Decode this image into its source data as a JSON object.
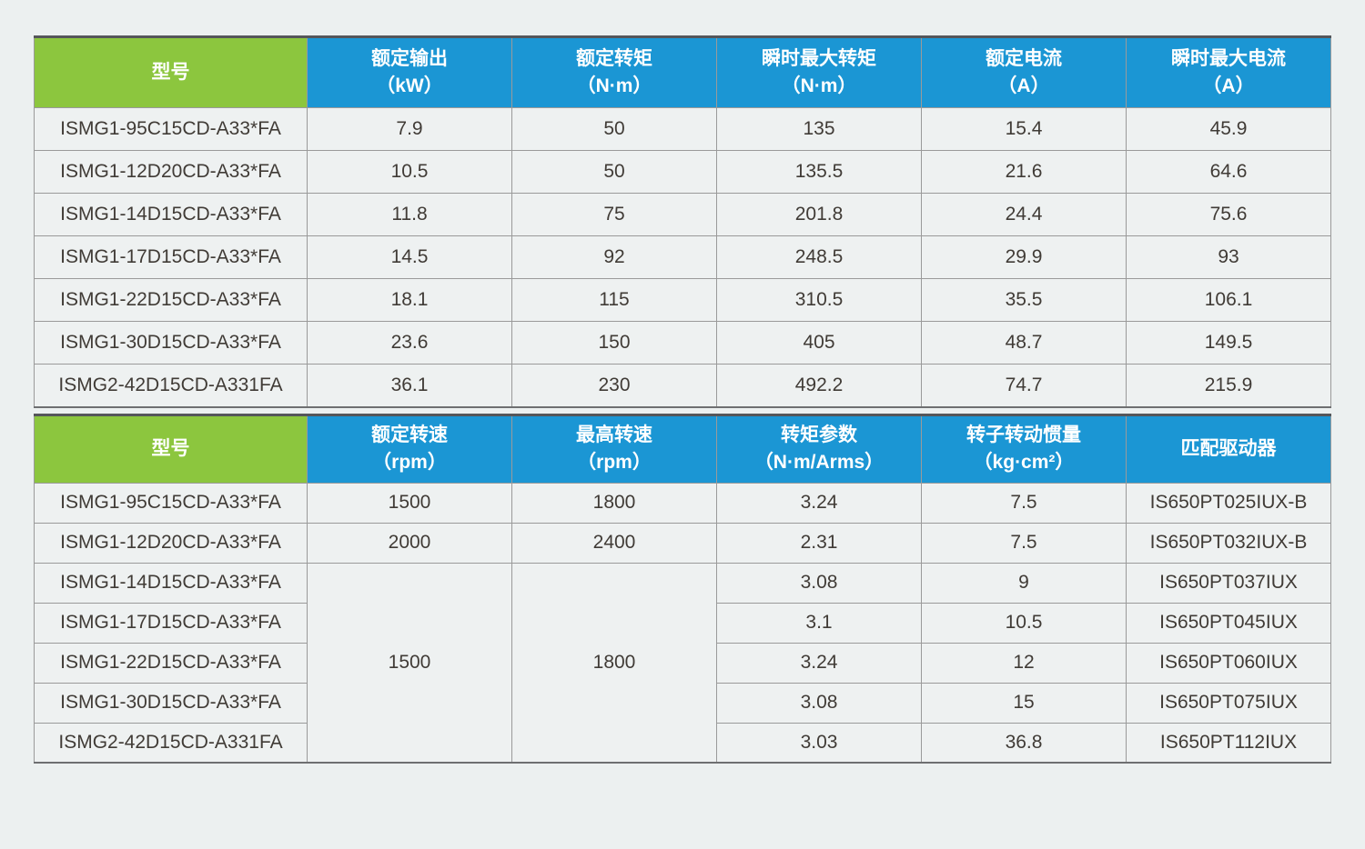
{
  "colors": {
    "page_bg": "#ECF0F0",
    "cell_bg": "#EEF1F1",
    "model_header_green": "#8CC63E",
    "data_header_blue": "#1B96D4",
    "header_text": "#FFFFFF",
    "body_text": "#403B36",
    "grid_line": "#9A9A9A",
    "table_top_border": "#55565A"
  },
  "table1": {
    "headers": [
      {
        "title": "型号",
        "unit": ""
      },
      {
        "title": "额定输出",
        "unit": "（kW）"
      },
      {
        "title": "额定转矩",
        "unit": "（N·m）"
      },
      {
        "title": "瞬时最大转矩",
        "unit": "（N·m）"
      },
      {
        "title": "额定电流",
        "unit": "（A）"
      },
      {
        "title": "瞬时最大电流",
        "unit": "（A）"
      }
    ],
    "rows": [
      {
        "model": "ISMG1-95C15CD-A33*FA",
        "output": "7.9",
        "torque": "50",
        "peak_torque": "135",
        "current": "15.4",
        "peak_current": "45.9"
      },
      {
        "model": "ISMG1-12D20CD-A33*FA",
        "output": "10.5",
        "torque": "50",
        "peak_torque": "135.5",
        "current": "21.6",
        "peak_current": "64.6"
      },
      {
        "model": "ISMG1-14D15CD-A33*FA",
        "output": "11.8",
        "torque": "75",
        "peak_torque": "201.8",
        "current": "24.4",
        "peak_current": "75.6"
      },
      {
        "model": "ISMG1-17D15CD-A33*FA",
        "output": "14.5",
        "torque": "92",
        "peak_torque": "248.5",
        "current": "29.9",
        "peak_current": "93"
      },
      {
        "model": "ISMG1-22D15CD-A33*FA",
        "output": "18.1",
        "torque": "115",
        "peak_torque": "310.5",
        "current": "35.5",
        "peak_current": "106.1"
      },
      {
        "model": "ISMG1-30D15CD-A33*FA",
        "output": "23.6",
        "torque": "150",
        "peak_torque": "405",
        "current": "48.7",
        "peak_current": "149.5"
      },
      {
        "model": "ISMG2-42D15CD-A331FA",
        "output": "36.1",
        "torque": "230",
        "peak_torque": "492.2",
        "current": "74.7",
        "peak_current": "215.9"
      }
    ]
  },
  "table2": {
    "headers": [
      {
        "title": "型号",
        "unit": ""
      },
      {
        "title": "额定转速",
        "unit": "（rpm）"
      },
      {
        "title": "最高转速",
        "unit": "（rpm）"
      },
      {
        "title": "转矩参数",
        "unit": "（N·m/Arms）"
      },
      {
        "title": "转子转动惯量",
        "unit": "（kg·cm²）"
      },
      {
        "title": "匹配驱动器",
        "unit": ""
      }
    ],
    "rows": [
      {
        "model": "ISMG1-95C15CD-A33*FA",
        "rated_speed": "1500",
        "max_speed": "1800",
        "torque_param": "3.24",
        "inertia": "7.5",
        "drive": "IS650PT025IUX-B"
      },
      {
        "model": "ISMG1-12D20CD-A33*FA",
        "rated_speed": "2000",
        "max_speed": "2400",
        "torque_param": "2.31",
        "inertia": "7.5",
        "drive": "IS650PT032IUX-B"
      },
      {
        "model": "ISMG1-14D15CD-A33*FA",
        "torque_param": "3.08",
        "inertia": "9",
        "drive": "IS650PT037IUX"
      },
      {
        "model": "ISMG1-17D15CD-A33*FA",
        "torque_param": "3.1",
        "inertia": "10.5",
        "drive": "IS650PT045IUX"
      },
      {
        "model": "ISMG1-22D15CD-A33*FA",
        "torque_param": "3.24",
        "inertia": "12",
        "drive": "IS650PT060IUX"
      },
      {
        "model": "ISMG1-30D15CD-A33*FA",
        "torque_param": "3.08",
        "inertia": "15",
        "drive": "IS650PT075IUX"
      },
      {
        "model": "ISMG2-42D15CD-A331FA",
        "torque_param": "3.03",
        "inertia": "36.8",
        "drive": "IS650PT112IUX"
      }
    ],
    "merged": {
      "rated_speed": "1500",
      "max_speed": "1800",
      "row_span": "5"
    }
  }
}
